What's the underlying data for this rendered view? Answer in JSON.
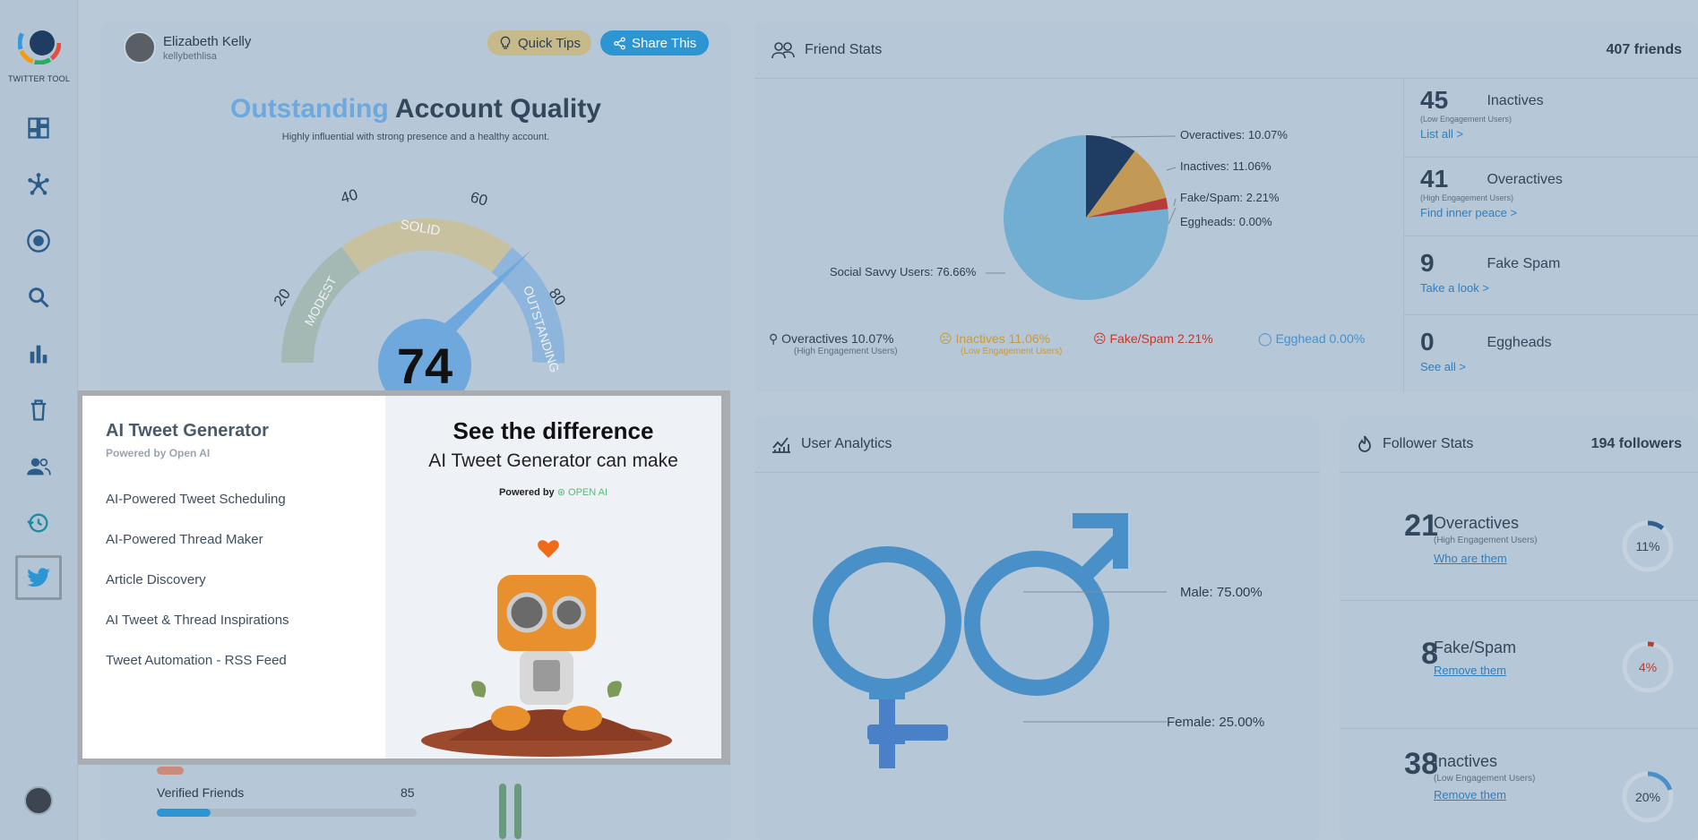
{
  "app": {
    "logo_text": "TWITTER TOOL"
  },
  "sidebar": {
    "items": [
      {
        "icon": "dashboard-icon"
      },
      {
        "icon": "network-icon"
      },
      {
        "icon": "target-icon"
      },
      {
        "icon": "search-icon"
      },
      {
        "icon": "bar-chart-icon"
      },
      {
        "icon": "trash-icon"
      },
      {
        "icon": "users-icon"
      },
      {
        "icon": "sync-clock-icon"
      },
      {
        "icon": "twitter-icon"
      }
    ]
  },
  "profile": {
    "name": "Elizabeth Kelly",
    "username": "kellybethlisa"
  },
  "header": {
    "tips_label": "Quick Tips",
    "share_label": "Share This"
  },
  "quality": {
    "title_highlight": "Outstanding",
    "title_rest": "Account Quality",
    "subtitle": "Highly influential with strong presence and a healthy account.",
    "score": "74",
    "ticks": [
      "20",
      "40",
      "60",
      "80"
    ],
    "bands": [
      "MODEST",
      "SOLID",
      "OUTSTANDING"
    ],
    "verified_label": "Verified Friends",
    "verified_value": "85"
  },
  "modal": {
    "title": "AI Tweet Generator",
    "powered": "Powered by Open AI",
    "items": [
      "AI-Powered Tweet Scheduling",
      "AI-Powered Thread Maker",
      "Article Discovery",
      "AI Tweet & Thread Inspirations",
      "Tweet Automation - RSS Feed"
    ],
    "headline": "See the difference",
    "subheadline": "AI Tweet Generator can make",
    "powered_by": "Powered by",
    "openai": "OPEN AI"
  },
  "friend_stats": {
    "title": "Friend Stats",
    "count": "407 friends",
    "pie": {
      "overactives": "Overactives: 10.07%",
      "inactives": "Inactives: 11.06%",
      "fakespam": "Fake/Spam: 2.21%",
      "eggheads": "Eggheads: 0.00%",
      "social": "Social Savvy Users: 76.66%"
    },
    "legend": {
      "overactives": "Overactives 10.07%",
      "overactives_sub": "(High Engagement Users)",
      "inactives": "Inactives 11.06%",
      "inactives_sub": "(Low Engagement Users)",
      "fakespam": "Fake/Spam 2.21%",
      "egghead": "Egghead 0.00%"
    },
    "stats": [
      {
        "num": "45",
        "label": "Inactives",
        "sub": "(Low Engagement Users)",
        "link": "List all >"
      },
      {
        "num": "41",
        "label": "Overactives",
        "sub": "(High Engagement Users)",
        "link": "Find inner peace >"
      },
      {
        "num": "9",
        "label": "Fake Spam",
        "sub": "",
        "link": "Take a look >"
      },
      {
        "num": "0",
        "label": "Eggheads",
        "sub": "",
        "link": "See all >"
      }
    ]
  },
  "analytics": {
    "title": "User Analytics",
    "male": "Male: 75.00%",
    "female": "Female: 25.00%"
  },
  "follower_stats": {
    "title": "Follower Stats",
    "count": "194 followers",
    "rows": [
      {
        "num": "21",
        "label": "Overactives",
        "sub": "(High Engagement Users)",
        "link": "Who are them",
        "pct": "11%",
        "frac": 0.11,
        "color": "#2e5f8f"
      },
      {
        "num": "8",
        "label": "Fake/Spam",
        "sub": "",
        "link": "Remove them",
        "pct": "4%",
        "frac": 0.04,
        "color": "#c0392b"
      },
      {
        "num": "38",
        "label": "Inactives",
        "sub": "(Low Engagement Users)",
        "link": "Remove them",
        "pct": "20%",
        "frac": 0.2,
        "color": "#4a90c8"
      }
    ]
  }
}
